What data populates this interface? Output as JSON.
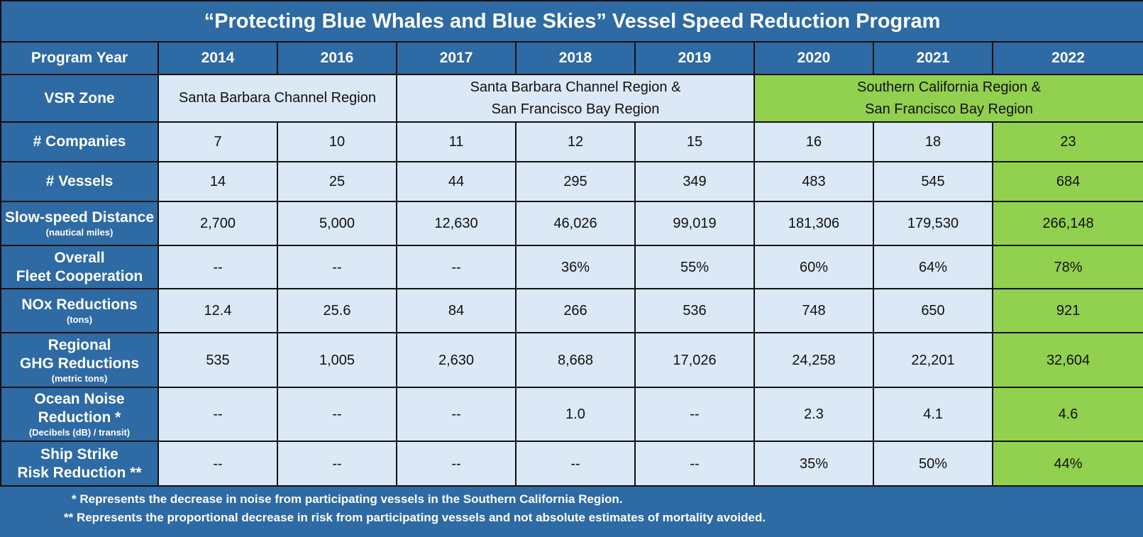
{
  "title": "“Protecting Blue Whales and Blue Skies” Vessel Speed Reduction Program",
  "header": {
    "label": "Program Year",
    "years": [
      "2014",
      "2016",
      "2017",
      "2018",
      "2019",
      "2020",
      "2021",
      "2022"
    ]
  },
  "zone": {
    "label": "VSR Zone",
    "groups": [
      {
        "line1": "Santa Barbara Channel Region",
        "line2": ""
      },
      {
        "line1": "Santa Barbara Channel Region &",
        "line2": "San Francisco Bay Region"
      },
      {
        "line1": "Southern California Region &",
        "line2": "San Francisco Bay Region"
      }
    ]
  },
  "rows": [
    {
      "label": "# Companies",
      "sub": "",
      "values": [
        "7",
        "10",
        "11",
        "12",
        "15",
        "16",
        "18",
        "23"
      ]
    },
    {
      "label": "# Vessels",
      "sub": "",
      "values": [
        "14",
        "25",
        "44",
        "295",
        "349",
        "483",
        "545",
        "684"
      ]
    },
    {
      "label": "Slow-speed Distance",
      "sub": "(nautical miles)",
      "values": [
        "2,700",
        "5,000",
        "12,630",
        "46,026",
        "99,019",
        "181,306",
        "179,530",
        "266,148"
      ]
    },
    {
      "label": "Overall",
      "label2": "Fleet Cooperation",
      "sub": "",
      "values": [
        "--",
        "--",
        "--",
        "36%",
        "55%",
        "60%",
        "64%",
        "78%"
      ]
    },
    {
      "label": "NOx Reductions",
      "sub": "(tons)",
      "values": [
        "12.4",
        "25.6",
        "84",
        "266",
        "536",
        "748",
        "650",
        "921"
      ]
    },
    {
      "label": "Regional",
      "label2": "GHG Reductions",
      "sub": "(metric tons)",
      "values": [
        "535",
        "1,005",
        "2,630",
        "8,668",
        "17,026",
        "24,258",
        "22,201",
        "32,604"
      ]
    },
    {
      "label": "Ocean Noise",
      "label2": "Reduction *",
      "sub": "(Decibels (dB) / transit)",
      "values": [
        "--",
        "--",
        "--",
        "1.0",
        "--",
        "2.3",
        "4.1",
        "4.6"
      ]
    },
    {
      "label": "Ship Strike",
      "label2": "Risk Reduction **",
      "sub": "",
      "values": [
        "--",
        "--",
        "--",
        "--",
        "--",
        "35%",
        "50%",
        "44%"
      ]
    }
  ],
  "footnotes": [
    "* Represents the decrease in noise from participating vessels in the Southern California Region.",
    "** Represents the proportional decrease in risk from participating vessels and not absolute estimates of mortality avoided."
  ],
  "colors": {
    "blue": "#2e6aa3",
    "light": "#dbe8f5",
    "green": "#92d050"
  }
}
